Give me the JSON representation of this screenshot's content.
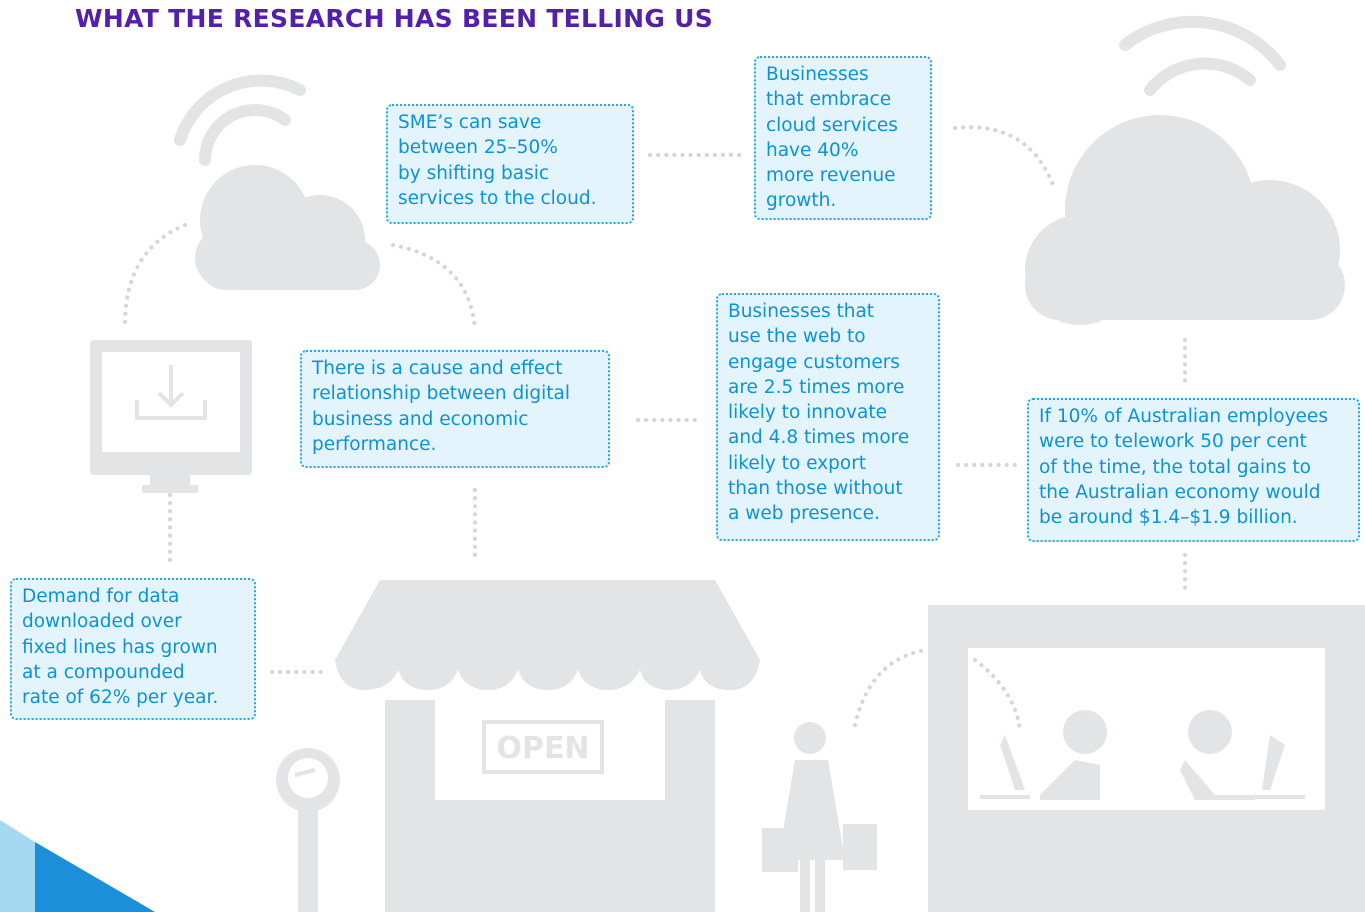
{
  "title": "WHAT THE RESEARCH HAS BEEN TELLING US",
  "sign": "OPEN",
  "boxes": [
    {
      "lines": [
        "SME’s can save",
        "between 25–50%",
        "by shifting basic",
        "services to the cloud."
      ]
    },
    {
      "lines": [
        "Businesses",
        "that embrace",
        "cloud services",
        "have 40%",
        "more revenue",
        "growth."
      ]
    },
    {
      "lines": [
        "There is a cause and effect",
        "relationship between digital",
        "business and economic",
        "performance."
      ]
    },
    {
      "lines": [
        "Businesses that",
        "use the web to",
        "engage customers",
        "are 2.5 times more",
        "likely to innovate",
        "and 4.8 times more",
        "likely to export",
        "than those without",
        "a web presence."
      ]
    },
    {
      "lines": [
        "If 10% of Australian employees",
        "were to telework 50 per cent",
        "of the time, the total gains to",
        "the Australian economy would",
        "be around $1.4–$1.9 billion."
      ]
    },
    {
      "lines": [
        "Demand for data",
        "downloaded over",
        "fixed lines has grown",
        "at a compounded",
        "rate of 62% per year."
      ]
    }
  ]
}
